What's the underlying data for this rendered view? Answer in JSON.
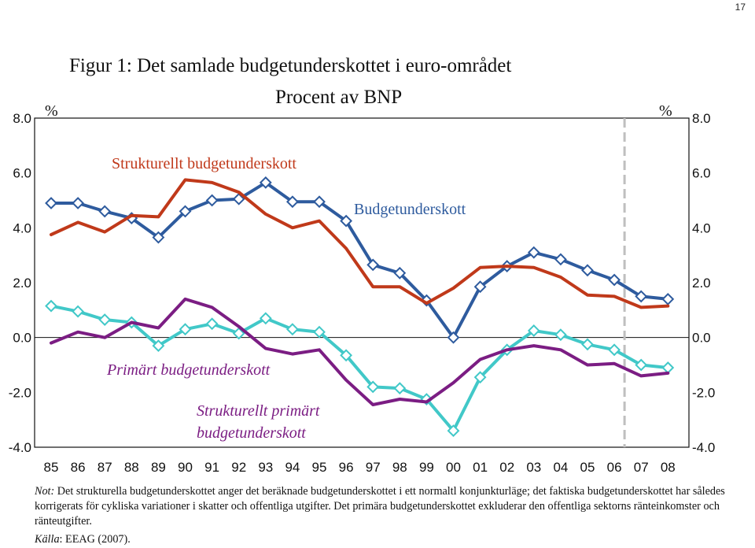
{
  "page_number": "17",
  "title": "Figur 1: Det samlade budgetunderskottet i euro-området",
  "subtitle": "Procent av BNP",
  "note_label": "Not:",
  "note_text": " Det strukturella budgetunderskottet anger det beräknade budgetunderskottet i ett normaltl konjunkturläge; det faktiska budgetunderskottet har således korrigerats för cykliska variationer i skatter och offentliga utgifter. Det primära budgetunderskottet exkluderar den offentliga sektorns ränteinkomster och ränteutgifter.",
  "source_label": "Källa",
  "source_text": ": EEAG (2007).",
  "chart_data": {
    "type": "line",
    "title": "Figur 1: Det samlade budgetunderskottet i euro-området",
    "subtitle": "Procent av BNP",
    "left_unit": "%",
    "right_unit": "%",
    "categories": [
      "85",
      "86",
      "87",
      "88",
      "89",
      "90",
      "91",
      "92",
      "93",
      "94",
      "95",
      "96",
      "97",
      "98",
      "99",
      "00",
      "01",
      "02",
      "03",
      "04",
      "05",
      "06",
      "07",
      "08"
    ],
    "ylim": [
      -4.0,
      8.0
    ],
    "yticks": [
      "8.0",
      "6.0",
      "4.0",
      "2.0",
      "0.0",
      "-2.0",
      "-4.0"
    ],
    "ytick_values": [
      8,
      6,
      4,
      2,
      0,
      -2,
      -4
    ],
    "forecast_start": "06",
    "series": [
      {
        "name": "Budgetunderskott",
        "color": "#2e5b9e",
        "markers": true,
        "values": [
          4.9,
          4.9,
          4.6,
          4.35,
          3.65,
          4.6,
          5.0,
          5.05,
          5.65,
          4.95,
          4.95,
          4.25,
          2.65,
          2.35,
          1.35,
          0.0,
          1.85,
          2.6,
          3.1,
          2.85,
          2.45,
          2.1,
          1.5,
          1.4
        ]
      },
      {
        "name": "Strukturellt budgetunderskott",
        "color": "#c0391a",
        "markers": false,
        "values": [
          3.75,
          4.2,
          3.85,
          4.45,
          4.4,
          5.75,
          5.65,
          5.3,
          4.5,
          4.0,
          4.25,
          3.25,
          1.85,
          1.85,
          1.25,
          1.8,
          2.55,
          2.6,
          2.55,
          2.2,
          1.55,
          1.5,
          1.1,
          1.15
        ]
      },
      {
        "name": "Primärt budgetunderskott",
        "color": "#41c8c8",
        "markers": true,
        "values": [
          1.15,
          0.95,
          0.65,
          0.55,
          -0.3,
          0.3,
          0.5,
          0.15,
          0.7,
          0.3,
          0.2,
          -0.65,
          -1.8,
          -1.85,
          -2.25,
          -3.4,
          -1.45,
          -0.45,
          0.25,
          0.1,
          -0.25,
          -0.45,
          -1.0,
          -1.1
        ]
      },
      {
        "name": "Strukturellt primärt budgetunderskott",
        "color": "#7b1d83",
        "markers": false,
        "values": [
          -0.2,
          0.2,
          0.0,
          0.55,
          0.35,
          1.4,
          1.1,
          0.4,
          -0.4,
          -0.6,
          -0.45,
          -1.55,
          -2.45,
          -2.25,
          -2.35,
          -1.65,
          -0.8,
          -0.45,
          -0.3,
          -0.45,
          -1.0,
          -0.95,
          -1.4,
          -1.3
        ]
      }
    ],
    "labels": [
      {
        "text": "Strukturellt budgetunderskott",
        "color": "#c0391a",
        "italic": false
      },
      {
        "text": "Budgetunderskott",
        "color": "#2e5b9e",
        "italic": false
      },
      {
        "text": "Primärt budgetunderskott",
        "color": "#7b1d83",
        "italic": true
      },
      {
        "text": "Strukturellt primärt",
        "color": "#7b1d83",
        "italic": true
      },
      {
        "text": "budgetunderskott",
        "color": "#7b1d83",
        "italic": true
      }
    ]
  }
}
